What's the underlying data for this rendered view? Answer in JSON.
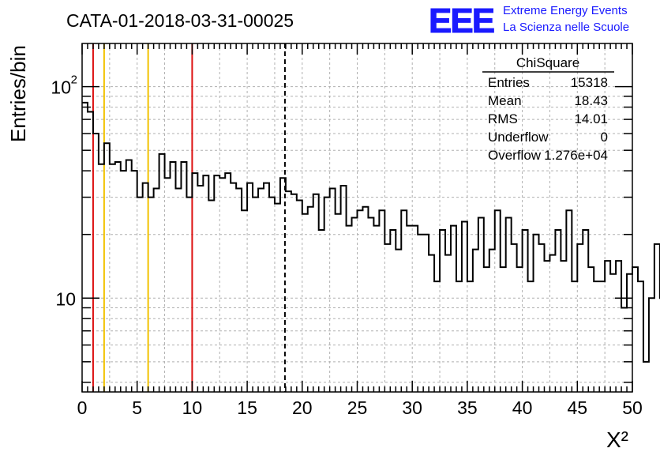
{
  "header": {
    "run_title": "CATA-01-2018-03-31-00025",
    "logo": {
      "mark": "EEE",
      "line1": "Extreme Energy Events",
      "line2": "La Scienza nelle Scuole",
      "color": "#1a1aff"
    }
  },
  "stats_box": {
    "title": "ChiSquare",
    "rows": [
      {
        "label": "Entries",
        "value": "15318"
      },
      {
        "label": "Mean",
        "value": "18.43"
      },
      {
        "label": "RMS",
        "value": "14.01"
      },
      {
        "label": "Underflow",
        "value": "0"
      },
      {
        "label": "Overflow",
        "value": "1.276e+04"
      }
    ]
  },
  "chart_data": {
    "type": "histogram",
    "title": "CATA-01-2018-03-31-00025",
    "xlabel": "X²",
    "ylabel": "Entries/bin",
    "xlim": [
      0,
      50
    ],
    "ylim": [
      3.6,
      160
    ],
    "yscale": "log",
    "bin_width": 0.5,
    "grid": true,
    "x_ticks": [
      "0",
      "5",
      "10",
      "15",
      "20",
      "25",
      "30",
      "35",
      "40",
      "45",
      "50"
    ],
    "y_tick_labels": [
      {
        "value": 10,
        "base": "10",
        "exp": ""
      },
      {
        "value": 100,
        "base": "10",
        "exp": "2"
      }
    ],
    "values": [
      84,
      76,
      60,
      43,
      54,
      43,
      44,
      40,
      45,
      40,
      30,
      35,
      30,
      33,
      48,
      37,
      44,
      33,
      44,
      30,
      39,
      34,
      38,
      29,
      38,
      37,
      39,
      35,
      33,
      26,
      35,
      30,
      33,
      35,
      30,
      28,
      37,
      32,
      31,
      29,
      25,
      27,
      31,
      21,
      30,
      33,
      25,
      34,
      22,
      24,
      26,
      27,
      24,
      22,
      26,
      18,
      21,
      17,
      26,
      22,
      22,
      20,
      20,
      16,
      12,
      21,
      16,
      22,
      12,
      23,
      12,
      17,
      24,
      14,
      17,
      26,
      14,
      24,
      18,
      14,
      21,
      12,
      20,
      18,
      15,
      16,
      21,
      15,
      26,
      12,
      18,
      21,
      14,
      12,
      12,
      15,
      13,
      15,
      9,
      13
    ],
    "tail_values": [
      14,
      12,
      5,
      10,
      18,
      10
    ],
    "reference_lines": [
      {
        "x": 1,
        "color": "#dd1111"
      },
      {
        "x": 2,
        "color": "#f2c200"
      },
      {
        "x": 6,
        "color": "#f2c200"
      },
      {
        "x": 10,
        "color": "#dd1111"
      }
    ],
    "mean_line": {
      "x": 18.43,
      "style": "dashed",
      "color": "#000000"
    }
  }
}
